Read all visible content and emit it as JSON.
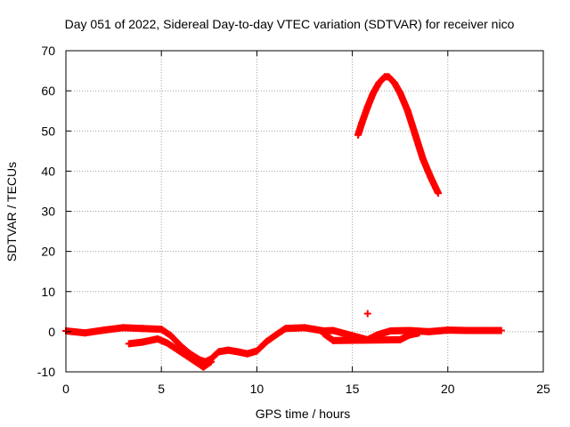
{
  "chart_data": {
    "type": "scatter",
    "title": "Day 051 of 2022, Sidereal Day-to-day VTEC variation (SDTVAR) for receiver nico",
    "xlabel": "GPS time / hours",
    "ylabel": "SDTVAR / TECUs",
    "xlim": [
      0,
      25
    ],
    "ylim": [
      -10,
      70
    ],
    "x_ticks": [
      0,
      5,
      10,
      15,
      20,
      25
    ],
    "y_ticks": [
      -10,
      0,
      10,
      20,
      30,
      40,
      50,
      60,
      70
    ],
    "grid": true,
    "marker": "plus",
    "series_color": "#ff0000",
    "series": [
      {
        "name": "track-low-main",
        "points": [
          [
            0,
            0.2
          ],
          [
            1,
            -0.3
          ],
          [
            2,
            0.4
          ],
          [
            3,
            1.0
          ],
          [
            4,
            0.8
          ],
          [
            5,
            0.6
          ],
          [
            5.5,
            -1
          ],
          [
            6,
            -3.5
          ],
          [
            6.5,
            -5.5
          ],
          [
            7,
            -7
          ],
          [
            7.3,
            -7.5
          ],
          [
            7.6,
            -6.8
          ],
          [
            8,
            -5
          ],
          [
            8.5,
            -4.6
          ],
          [
            9,
            -5
          ],
          [
            9.5,
            -5.5
          ],
          [
            10,
            -4.8
          ],
          [
            10.5,
            -2.5
          ],
          [
            11,
            -0.8
          ],
          [
            11.5,
            0.8
          ],
          [
            12,
            0.9
          ],
          [
            12.5,
            1.0
          ],
          [
            13,
            0.6
          ],
          [
            13.5,
            0.2
          ],
          [
            14,
            0.3
          ],
          [
            15,
            -1.0
          ],
          [
            15.8,
            -2.0
          ],
          [
            16.3,
            -0.8
          ],
          [
            17,
            0.2
          ],
          [
            18,
            0.3
          ],
          [
            19,
            0.0
          ],
          [
            20,
            0.4
          ],
          [
            21,
            0.3
          ],
          [
            22,
            0.3
          ],
          [
            22.8,
            0.3
          ]
        ]
      },
      {
        "name": "track-low-secondary",
        "points": [
          [
            3.3,
            -3.0
          ],
          [
            4,
            -2.6
          ],
          [
            4.8,
            -1.8
          ],
          [
            5.3,
            -2.8
          ],
          [
            6,
            -5.0
          ],
          [
            6.7,
            -7.2
          ],
          [
            7.2,
            -8.8
          ],
          [
            7.6,
            -7.5
          ]
        ]
      },
      {
        "name": "track-low-tail",
        "points": [
          [
            13.5,
            -0.5
          ],
          [
            14,
            -2.2
          ],
          [
            17.5,
            -2.0
          ],
          [
            18,
            -0.8
          ],
          [
            18.5,
            -0.3
          ]
        ]
      },
      {
        "name": "track-high-arc",
        "points": [
          [
            15.3,
            49
          ],
          [
            15.5,
            52
          ],
          [
            15.8,
            56
          ],
          [
            16.1,
            59.5
          ],
          [
            16.4,
            62
          ],
          [
            16.7,
            63.5
          ],
          [
            16.9,
            63.5
          ],
          [
            17.2,
            62
          ],
          [
            17.5,
            59.5
          ],
          [
            17.9,
            55
          ],
          [
            18.3,
            49
          ],
          [
            18.7,
            43
          ],
          [
            19.1,
            38.5
          ],
          [
            19.5,
            34.5
          ]
        ]
      },
      {
        "name": "isolated-point",
        "points": [
          [
            15.8,
            4.5
          ]
        ]
      }
    ]
  }
}
